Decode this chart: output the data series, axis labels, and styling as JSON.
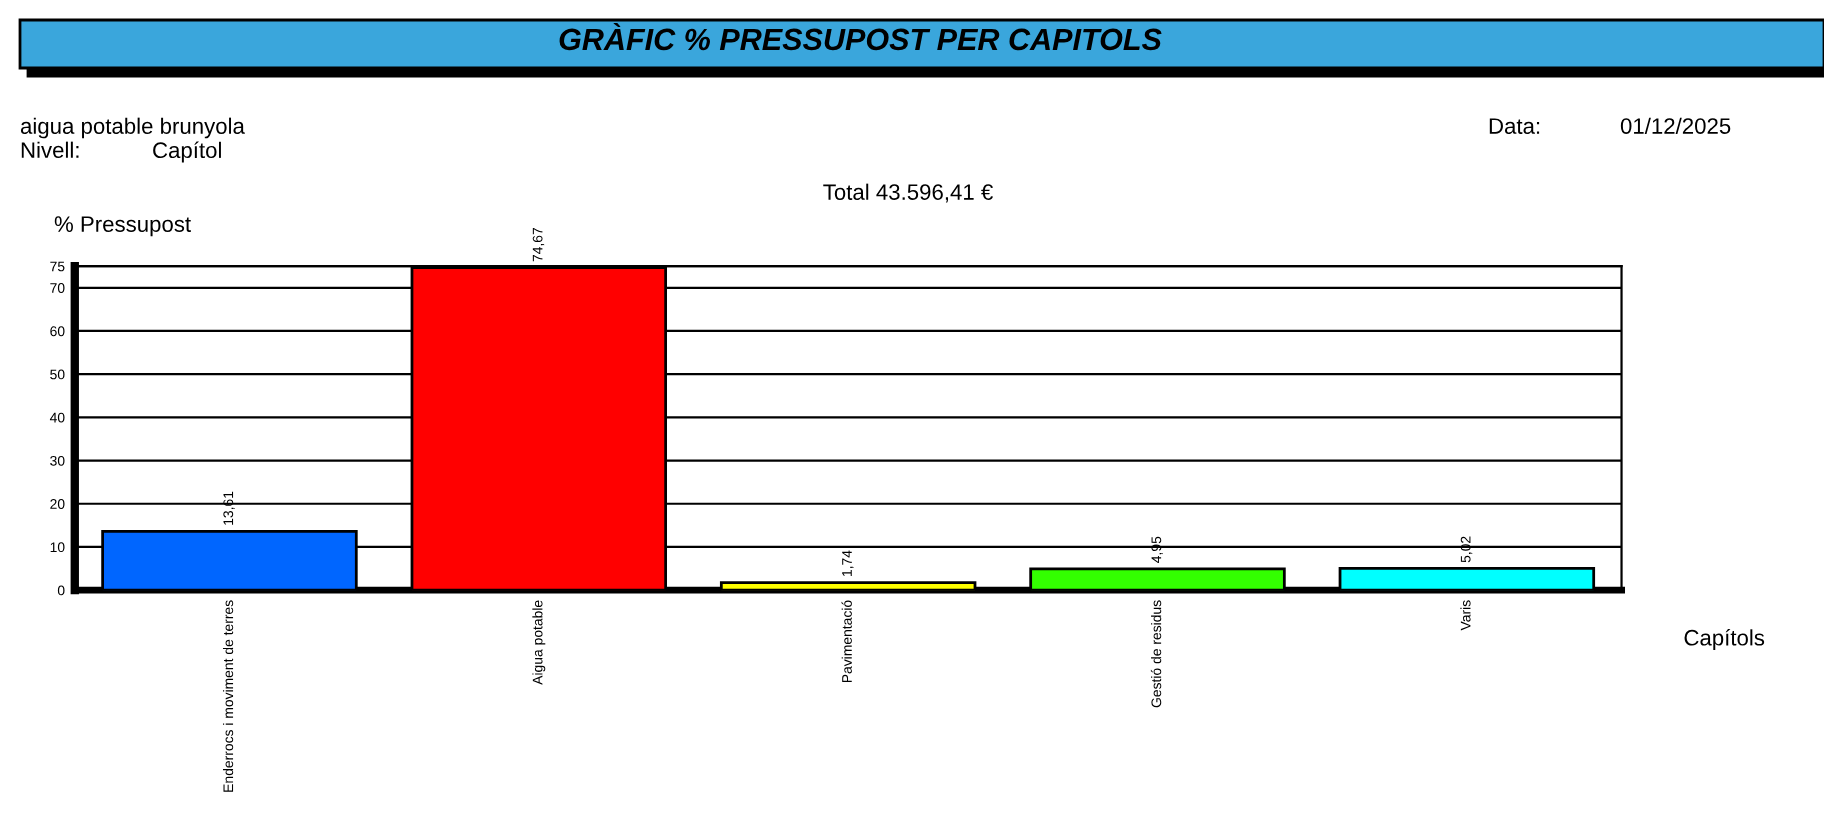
{
  "chart_data": {
    "type": "bar",
    "title": "GRÀFIC % PRESSUPOST PER CAPITOLS",
    "annotations": [
      "aigua potable brunyola",
      "Nivell:",
      "Capítol",
      "Data:",
      "01/12/2025",
      "Total 43.596,41 €"
    ],
    "xlabel": "Capítols",
    "ylabel": "% Pressupost",
    "categories": [
      "Enderrocs i moviment de terres",
      "Aigua potable",
      "Pavimentació",
      "Gestió de residus",
      "Varis"
    ],
    "values": [
      13.61,
      74.67,
      1.74,
      4.95,
      5.02
    ],
    "colors": [
      "#0066ff",
      "#ff0000",
      "#ffff00",
      "#33ff00",
      "#00ffff"
    ],
    "value_labels": [
      "13,61",
      "74,67",
      "1,74",
      "4,95",
      "5,02"
    ],
    "ylim": [
      0,
      75
    ],
    "yticks": [
      0,
      10,
      20,
      30,
      40,
      50,
      60,
      70,
      75
    ],
    "grid": "y"
  }
}
